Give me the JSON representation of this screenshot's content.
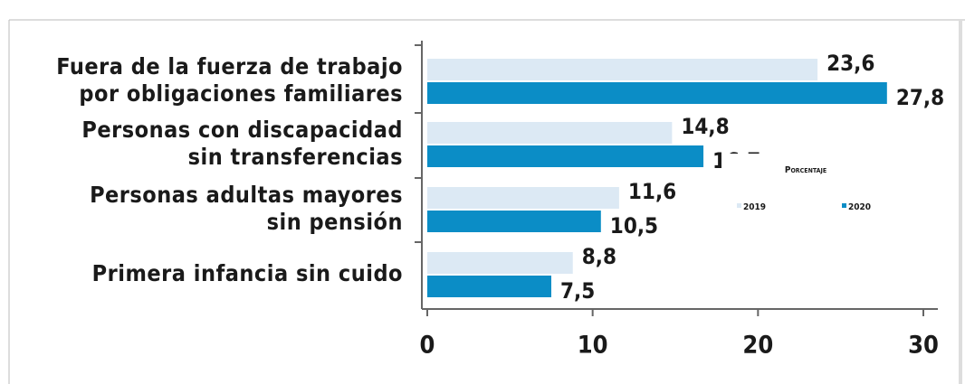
{
  "chart_data": {
    "type": "bar",
    "orientation": "horizontal",
    "categories": [
      [
        "Fuera de la fuerza de trabajo",
        "por obligaciones familiares"
      ],
      [
        "Personas con discapacidad",
        "sin transferencias"
      ],
      [
        "Personas adultas mayores",
        "sin pensión"
      ],
      [
        "Primera infancia sin cuido"
      ]
    ],
    "legend_title": "Porcentaje",
    "series": [
      {
        "name": "2019",
        "color": "#dce9f4",
        "values": [
          23.6,
          14.8,
          11.6,
          8.8
        ],
        "value_labels": [
          "23,6",
          "14,8",
          "11,6",
          "8,8"
        ]
      },
      {
        "name": "2020",
        "color": "#0b8dc6",
        "values": [
          27.8,
          16.7,
          10.5,
          7.5
        ],
        "value_labels": [
          "27,8",
          "16,7",
          "10,5",
          "7,5"
        ]
      }
    ],
    "xlim": [
      0,
      30
    ],
    "xticks": [
      0,
      10,
      20,
      30
    ]
  }
}
